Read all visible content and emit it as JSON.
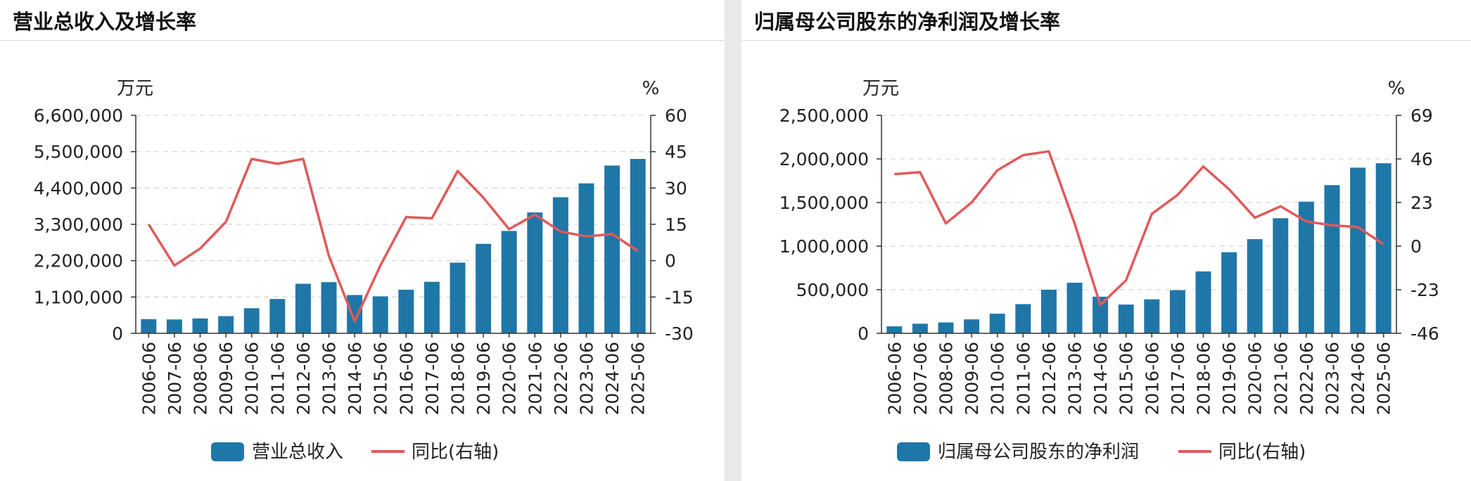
{
  "charts": [
    {
      "title": "营业总收入及增长率",
      "bar_color": "#1f77a8",
      "line_color": "#e05a5a",
      "chart_data": {
        "type": "bar",
        "title": "营业总收入及增长率",
        "categories": [
          "2006-06",
          "2007-06",
          "2008-06",
          "2009-06",
          "2010-06",
          "2011-06",
          "2012-06",
          "2013-06",
          "2014-06",
          "2015-06",
          "2016-06",
          "2017-06",
          "2018-06",
          "2019-06",
          "2020-06",
          "2021-06",
          "2022-06",
          "2023-06",
          "2024-06",
          "2025-06"
        ],
        "y_left_unit": "万元",
        "y_right_unit": "%",
        "y_left_ticks": [
          "0",
          "1,100,000",
          "2,200,000",
          "3,300,000",
          "4,400,000",
          "5,500,000",
          "6,600,000"
        ],
        "y_right_ticks": [
          "-30",
          "-15",
          "0",
          "15",
          "30",
          "45",
          "60"
        ],
        "ylim_left": [
          0,
          6600000
        ],
        "ylim_right": [
          -30,
          60
        ],
        "grid": true,
        "legend_position": "bottom",
        "series": [
          {
            "name": "营业总收入",
            "type": "bar",
            "axis": "left",
            "values": [
              430000,
              420000,
              450000,
              520000,
              760000,
              1040000,
              1500000,
              1550000,
              1160000,
              1120000,
              1320000,
              1560000,
              2140000,
              2710000,
              3100000,
              3660000,
              4120000,
              4540000,
              5080000,
              5280000
            ]
          },
          {
            "name": "同比(右轴)",
            "type": "line",
            "axis": "right",
            "values": [
              15,
              -2,
              5,
              16,
              42,
              40,
              42,
              2,
              -25,
              -2,
              18,
              17.5,
              37,
              26,
              13,
              19,
              12,
              10,
              11,
              4
            ]
          }
        ]
      }
    },
    {
      "title": "归属母公司股东的净利润及增长率",
      "bar_color": "#1f77a8",
      "line_color": "#e05a5a",
      "chart_data": {
        "type": "bar",
        "title": "归属母公司股东的净利润及增长率",
        "categories": [
          "2006-06",
          "2007-06",
          "2008-06",
          "2009-06",
          "2010-06",
          "2011-06",
          "2012-06",
          "2013-06",
          "2014-06",
          "2015-06",
          "2016-06",
          "2017-06",
          "2018-06",
          "2019-06",
          "2020-06",
          "2021-06",
          "2022-06",
          "2023-06",
          "2024-06",
          "2025-06"
        ],
        "y_left_unit": "万元",
        "y_right_unit": "%",
        "y_left_ticks": [
          "0",
          "500,000",
          "1,000,000",
          "1,500,000",
          "2,000,000",
          "2,500,000"
        ],
        "y_right_ticks": [
          "-46",
          "-23",
          "0",
          "23",
          "46",
          "69"
        ],
        "ylim_left": [
          0,
          2500000
        ],
        "ylim_right": [
          -46,
          69
        ],
        "grid": true,
        "legend_position": "bottom",
        "series": [
          {
            "name": "归属母公司股东的净利润",
            "type": "bar",
            "axis": "left",
            "values": [
              80000,
              110000,
              125000,
              160000,
              225000,
              335000,
              500000,
              580000,
              420000,
              330000,
              390000,
              495000,
              710000,
              930000,
              1080000,
              1320000,
              1510000,
              1700000,
              1900000,
              1950000
            ]
          },
          {
            "name": "同比(右轴)",
            "type": "line",
            "axis": "right",
            "values": [
              38,
              39,
              12,
              23,
              40,
              48,
              50,
              12,
              -31,
              -18,
              17,
              27,
              42,
              30,
              15,
              21,
              13,
              11,
              10,
              1
            ]
          }
        ]
      }
    }
  ]
}
